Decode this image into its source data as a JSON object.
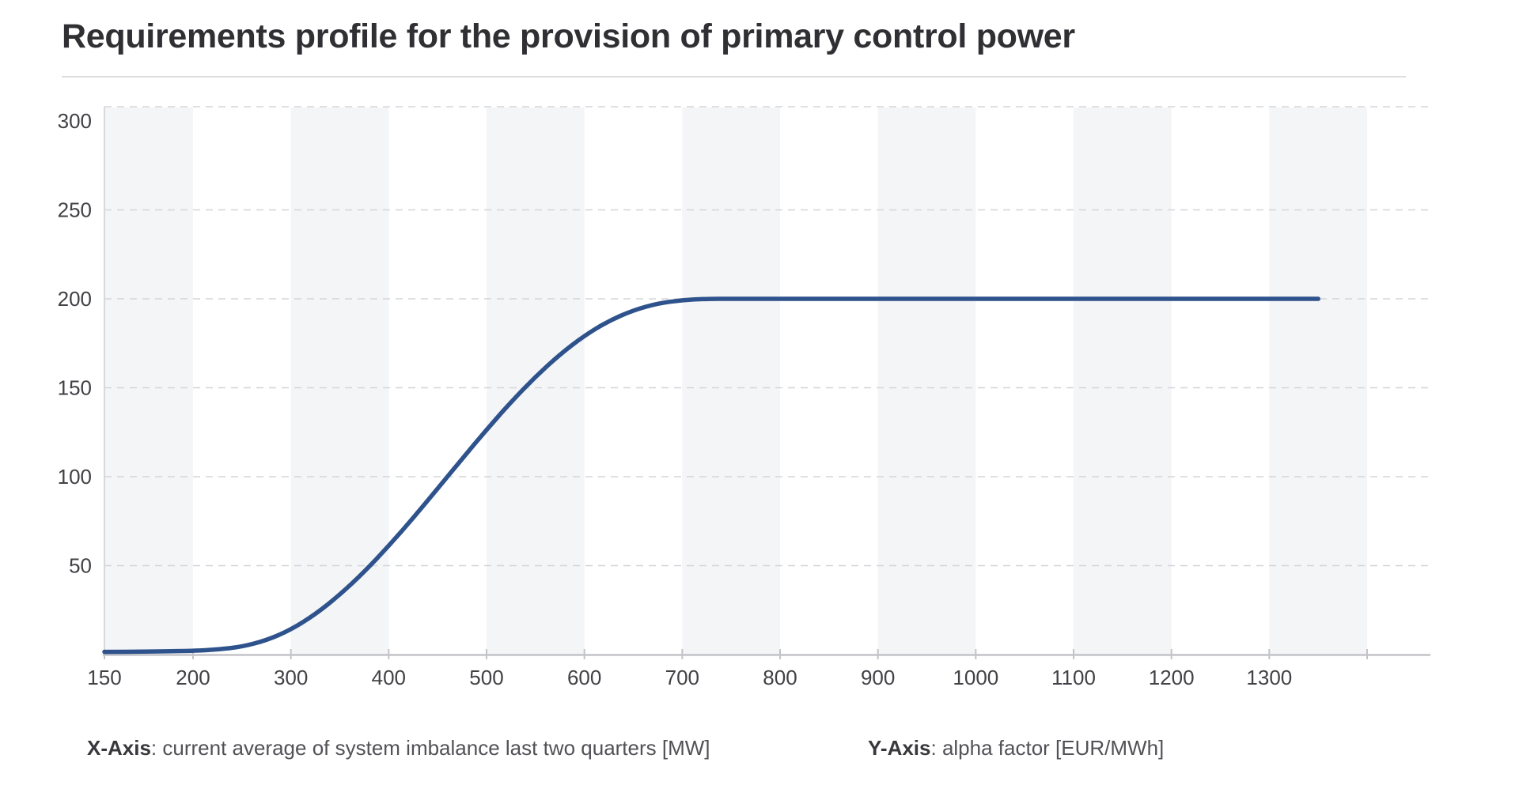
{
  "title": "Requirements profile for the provision of primary control power",
  "footer": {
    "x_label": "X-Axis",
    "x_text": ": current average of system imbalance last two quarters [MW]",
    "y_label": "Y-Axis",
    "y_text": ": alpha factor [EUR/MWh]"
  },
  "colors": {
    "line": "#2e528c",
    "band": "#f4f5f7",
    "grid": "#d5d5d9",
    "axis": "#c3c3c8",
    "y_axis_line": "#d8d8db",
    "tick_label": "#414146",
    "title_text": "#303034"
  },
  "chart_data": {
    "type": "line",
    "title": "Requirements profile for the provision of primary control power",
    "xlabel": "current average of system imbalance last two quarters [MW]",
    "ylabel": "alpha factor [EUR/MWh]",
    "x_axis": {
      "ticks": [
        150,
        200,
        300,
        400,
        500,
        600,
        700,
        800,
        900,
        1000,
        1100,
        1200,
        1300,
        1400
      ],
      "tick_labels": [
        "150",
        "200",
        "300",
        "400",
        "500",
        "600",
        "700",
        "800",
        "900",
        "1000",
        "1100",
        "1200",
        "1300",
        ""
      ],
      "range": [
        150,
        1465
      ]
    },
    "y_axis": {
      "ticks": [
        50,
        100,
        150,
        200,
        250,
        300
      ],
      "grid_ticks": [
        50,
        100,
        150,
        200,
        250
      ],
      "range": [
        0,
        308
      ],
      "grid_dashed": true,
      "top_boundary_line": true
    },
    "banded_intervals": [
      [
        150,
        200
      ],
      [
        300,
        400
      ],
      [
        500,
        600
      ],
      [
        700,
        800
      ],
      [
        900,
        1000
      ],
      [
        1100,
        1200
      ],
      [
        1300,
        1400
      ]
    ],
    "legend": "none",
    "plateau_value": 200,
    "series": [
      {
        "name": "alpha factor",
        "color": "#2e528c",
        "points": [
          [
            150,
            1.5
          ],
          [
            175,
            1.7
          ],
          [
            200,
            2.1
          ],
          [
            225,
            2.8
          ],
          [
            250,
            4.4
          ],
          [
            275,
            8.0
          ],
          [
            300,
            14.0
          ],
          [
            325,
            22.6
          ],
          [
            350,
            33.6
          ],
          [
            375,
            46.5
          ],
          [
            400,
            61.1
          ],
          [
            425,
            76.8
          ],
          [
            450,
            93.3
          ],
          [
            475,
            110.0
          ],
          [
            500,
            126.4
          ],
          [
            525,
            142.0
          ],
          [
            550,
            156.2
          ],
          [
            575,
            168.8
          ],
          [
            600,
            179.3
          ],
          [
            625,
            187.6
          ],
          [
            650,
            193.6
          ],
          [
            675,
            197.4
          ],
          [
            700,
            199.3
          ],
          [
            725,
            200
          ],
          [
            750,
            200
          ],
          [
            800,
            200
          ],
          [
            850,
            200
          ],
          [
            900,
            200
          ],
          [
            950,
            200
          ],
          [
            1000,
            200
          ],
          [
            1050,
            200
          ],
          [
            1100,
            200
          ],
          [
            1150,
            200
          ],
          [
            1200,
            200
          ],
          [
            1250,
            200
          ],
          [
            1300,
            200
          ],
          [
            1350,
            200
          ]
        ]
      }
    ]
  }
}
